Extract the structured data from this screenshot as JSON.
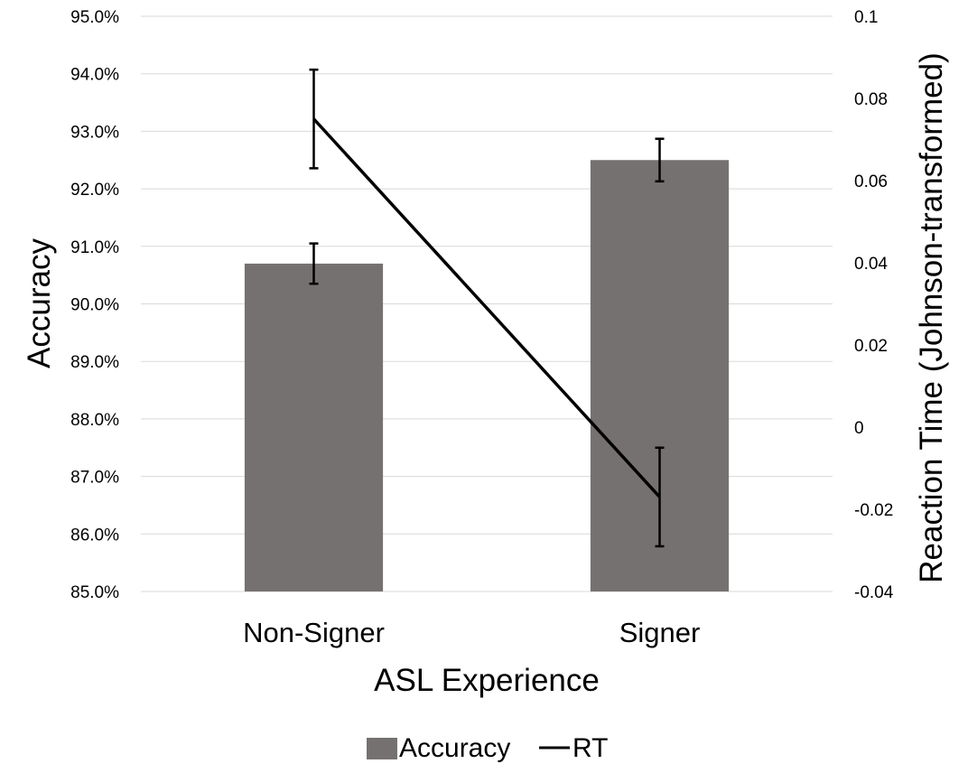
{
  "chart_data": {
    "type": "bar",
    "title": "",
    "xlabel": "ASL Experience",
    "ylabel": "Accuracy",
    "y2label": "Reaction Time (Johnson-transformed)",
    "categories": [
      "Non-Signer",
      "Signer"
    ],
    "ylim": [
      85.0,
      95.0
    ],
    "y_ticks": [
      "95.0%",
      "94.0%",
      "93.0%",
      "92.0%",
      "91.0%",
      "90.0%",
      "89.0%",
      "88.0%",
      "87.0%",
      "86.0%",
      "85.0%"
    ],
    "y2lim": [
      -0.04,
      0.1
    ],
    "y2_ticks": [
      "0.1",
      "0.08",
      "0.06",
      "0.04",
      "0.02",
      "0",
      "-0.02",
      "-0.04"
    ],
    "grid": true,
    "legend_position": "bottom",
    "series": [
      {
        "name": "Accuracy",
        "kind": "bar",
        "axis": "left",
        "color": "#767171",
        "values": [
          90.7,
          92.5
        ],
        "error_low": [
          90.35,
          92.13
        ],
        "error_high": [
          91.05,
          92.87
        ]
      },
      {
        "name": "RT",
        "kind": "line",
        "axis": "right",
        "color": "#000000",
        "values": [
          0.075,
          -0.017
        ],
        "error_low": [
          0.063,
          -0.029
        ],
        "error_high": [
          0.087,
          -0.005
        ]
      }
    ]
  }
}
